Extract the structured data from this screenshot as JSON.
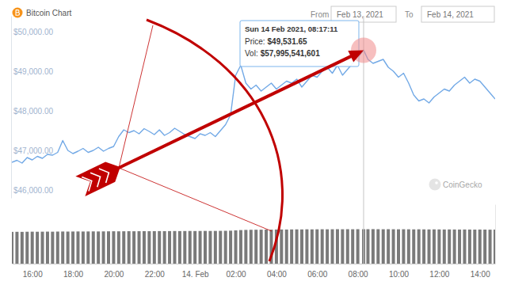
{
  "chart_data": {
    "type": "line",
    "title": "Bitcoin Chart",
    "date_range": {
      "from_label": "From",
      "from": "Feb 13, 2021",
      "to_label": "To",
      "to": "Feb 14, 2021"
    },
    "watermark": "CoinGecko",
    "x": [
      15,
      15.25,
      15.5,
      15.75,
      16,
      16.25,
      16.5,
      16.75,
      17,
      17.25,
      17.5,
      17.75,
      18,
      18.25,
      18.5,
      18.75,
      19,
      19.25,
      19.5,
      19.75,
      20,
      20.25,
      20.5,
      20.75,
      21,
      21.25,
      21.5,
      21.75,
      22,
      22.25,
      22.5,
      22.75,
      23,
      23.25,
      23.5,
      23.75,
      24,
      24.25,
      24.5,
      24.75,
      25,
      25.25,
      25.5,
      25.75,
      26,
      26.25,
      26.5,
      26.75,
      27,
      27.25,
      27.5,
      27.75,
      28,
      28.25,
      28.5,
      28.75,
      29,
      29.25,
      29.5,
      29.75,
      30,
      30.25,
      30.5,
      30.75,
      31,
      31.25,
      31.5,
      31.75,
      32,
      32.2864,
      32.5,
      32.75,
      33,
      33.25,
      33.5,
      33.75,
      34,
      34.25,
      34.5,
      34.75,
      35,
      35.25,
      35.5,
      35.75,
      36,
      36.25,
      36.5,
      36.75,
      37,
      37.25,
      37.5,
      37.75,
      38,
      38.25,
      38.5,
      38.75
    ],
    "series": [
      {
        "name": "Price:",
        "color": "#72a9e6",
        "values": [
          46700,
          46750,
          46680,
          46820,
          46760,
          46850,
          46800,
          46900,
          46880,
          46950,
          47250,
          47000,
          46920,
          46980,
          47050,
          46950,
          47000,
          47080,
          46980,
          47050,
          47100,
          47350,
          47520,
          47450,
          47500,
          47420,
          47550,
          47480,
          47400,
          47520,
          47380,
          47450,
          47560,
          47480,
          47400,
          47350,
          47300,
          47420,
          47380,
          47450,
          47350,
          47500,
          47650,
          47900,
          48900,
          49150,
          48700,
          48550,
          48650,
          48500,
          48600,
          48700,
          48550,
          48650,
          48750,
          48700,
          48800,
          48600,
          48750,
          48900,
          48850,
          49000,
          49100,
          48950,
          49150,
          48900,
          49050,
          49200,
          49350,
          49531.65,
          49300,
          49200,
          49250,
          49300,
          49100,
          49000,
          48850,
          48950,
          48700,
          48400,
          48250,
          48300,
          48200,
          48350,
          48450,
          48550,
          48500,
          48650,
          48750,
          48850,
          48700,
          48800,
          48750,
          48600,
          48450,
          48300
        ]
      },
      {
        "name": "Vol:",
        "type": "bar",
        "axis": "y2",
        "color": "#7a7a7a",
        "values": [
          53500000000.0,
          53600000000.0,
          53500000000.0,
          53700000000.0,
          53800000000.0,
          53700000000.0,
          53800000000.0,
          53900000000.0,
          53800000000.0,
          54000000000.0,
          54100000000.0,
          54000000000.0,
          54100000000.0,
          54200000000.0,
          54100000000.0,
          54200000000.0,
          54300000000.0,
          54200000000.0,
          54300000000.0,
          54400000000.0,
          54500000000.0,
          54400000000.0,
          54500000000.0,
          54600000000.0,
          54500000000.0,
          54600000000.0,
          54700000000.0,
          54600000000.0,
          54700000000.0,
          54800000000.0,
          54700000000.0,
          54800000000.0,
          54900000000.0,
          54800000000.0,
          54900000000.0,
          55000000000.0,
          54900000000.0,
          55000000000.0,
          55100000000.0,
          55000000000.0,
          55100000000.0,
          55200000000.0,
          55300000000.0,
          55500000000.0,
          56000000000.0,
          56500000000.0,
          56800000000.0,
          57000000000.0,
          57100000000.0,
          57200000000.0,
          57300000000.0,
          57200000000.0,
          57400000000.0,
          57500000000.0,
          57400000000.0,
          57600000000.0,
          57700000000.0,
          57600000000.0,
          57800000000.0,
          57700000000.0,
          57800000000.0,
          57900000000.0,
          57800000000.0,
          57900000000.0,
          58000000000.0,
          57900000000.0,
          58000000000.0,
          57900000000.0,
          58000000000.0,
          57995541601,
          58000000000.0,
          58100000000.0,
          58000000000.0,
          57900000000.0,
          58000000000.0,
          57900000000.0,
          57800000000.0,
          57900000000.0,
          57800000000.0,
          57700000000.0,
          57800000000.0,
          57700000000.0,
          57600000000.0,
          57700000000.0,
          57600000000.0,
          57500000000.0,
          57600000000.0,
          57500000000.0,
          57400000000.0,
          57500000000.0,
          57400000000.0,
          57300000000.0,
          57400000000.0,
          57300000000.0,
          57200000000.0,
          57300000000.0
        ]
      }
    ],
    "xlim": [
      15,
      38.75
    ],
    "xticks": [
      {
        "value": 16,
        "label": "16:00"
      },
      {
        "value": 18,
        "label": "18:00"
      },
      {
        "value": 20,
        "label": "20:00"
      },
      {
        "value": 22,
        "label": "22:00"
      },
      {
        "value": 24,
        "label": "14. Feb"
      },
      {
        "value": 26,
        "label": "02:00"
      },
      {
        "value": 28,
        "label": "04:00"
      },
      {
        "value": 30,
        "label": "06:00"
      },
      {
        "value": 32,
        "label": "08:00"
      },
      {
        "value": 34,
        "label": "10:00"
      },
      {
        "value": 36,
        "label": "12:00"
      },
      {
        "value": 38,
        "label": "14:00"
      }
    ],
    "ylim": [
      45800,
      50400
    ],
    "yticks": [
      {
        "value": 46000,
        "label": "$46,000.00"
      },
      {
        "value": 47000,
        "label": "$47,000.00"
      },
      {
        "value": 48000,
        "label": "$48,000.00"
      },
      {
        "value": 49000,
        "label": "$49,000.00"
      },
      {
        "value": 50000,
        "label": "$50,000.00"
      }
    ],
    "y2lim": [
      0,
      100000000000.0
    ],
    "grid": false,
    "annotations": [
      {
        "x": 32.2864,
        "text": "Sun 14 Feb 2021, 08:17:11",
        "values": [
          49531.65,
          57995541601
        ],
        "value_labels": [
          "$49,531.65",
          "$57,995,541,601"
        ]
      }
    ]
  }
}
